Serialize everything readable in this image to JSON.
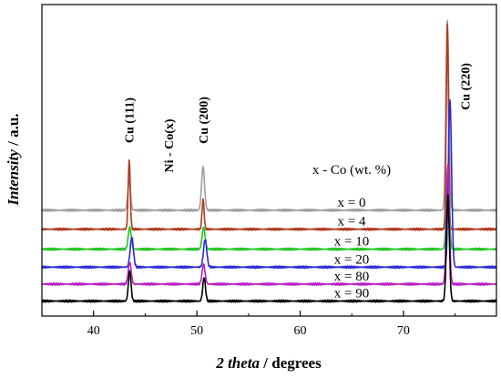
{
  "chart_data": {
    "type": "line",
    "title": "",
    "xlabel_italic": "2 theta",
    "xlabel_rest": " / degrees",
    "ylabel_italic": "Intensity",
    "ylabel_rest": " / a.u.",
    "xlim": [
      35,
      79
    ],
    "x_ticks": [
      40,
      50,
      60,
      70
    ],
    "y_ticks_shown": false,
    "grid": false,
    "legend_title": "x - Co (wt. %)",
    "sample_annotation": "Ni - Co(x)",
    "peak_labels": [
      {
        "text": "Cu (111)",
        "x": 43.4
      },
      {
        "text": "Cu (200)",
        "x": 50.6
      },
      {
        "text": "Cu (220)",
        "x": 74.3
      }
    ],
    "peak_positions": [
      43.4,
      50.6,
      74.3
    ],
    "series": [
      {
        "name": "x = 0",
        "color": "#9e9e9e",
        "baseline": 5.3,
        "peaks": [
          {
            "x": 43.45,
            "h": 1.5,
            "w": 0.18
          },
          {
            "x": 50.6,
            "h": 2.2,
            "w": 0.2
          },
          {
            "x": 74.25,
            "h": 9.5,
            "w": 0.2
          }
        ]
      },
      {
        "name": "x = 4",
        "color": "#b03a1e",
        "baseline": 4.35,
        "peaks": [
          {
            "x": 43.45,
            "h": 3.5,
            "w": 0.14
          },
          {
            "x": 50.6,
            "h": 1.5,
            "w": 0.14
          },
          {
            "x": 74.25,
            "h": 10.3,
            "w": 0.15
          }
        ]
      },
      {
        "name": "x = 10",
        "color": "#22c422",
        "baseline": 3.35,
        "peaks": [
          {
            "x": 43.5,
            "h": 1.1,
            "w": 0.2
          },
          {
            "x": 50.65,
            "h": 1.1,
            "w": 0.2
          },
          {
            "x": 74.3,
            "h": 4.0,
            "w": 0.2
          }
        ]
      },
      {
        "name": "x = 20",
        "color": "#2a2ad8",
        "baseline": 2.45,
        "peaks": [
          {
            "x": 43.7,
            "h": 1.5,
            "w": 0.22
          },
          {
            "x": 50.8,
            "h": 1.4,
            "w": 0.22
          },
          {
            "x": 74.5,
            "h": 8.4,
            "w": 0.22
          }
        ]
      },
      {
        "name": "x = 80",
        "color": "#b81ec4",
        "baseline": 1.6,
        "peaks": [
          {
            "x": 43.5,
            "h": 1.1,
            "w": 0.2
          },
          {
            "x": 50.65,
            "h": 1.0,
            "w": 0.2
          },
          {
            "x": 74.3,
            "h": 6.0,
            "w": 0.2
          }
        ]
      },
      {
        "name": "x = 90",
        "color": "#000000",
        "baseline": 0.75,
        "peaks": [
          {
            "x": 43.5,
            "h": 1.5,
            "w": 0.18
          },
          {
            "x": 50.7,
            "h": 1.2,
            "w": 0.18
          },
          {
            "x": 74.3,
            "h": 5.3,
            "w": 0.2
          }
        ]
      }
    ]
  }
}
